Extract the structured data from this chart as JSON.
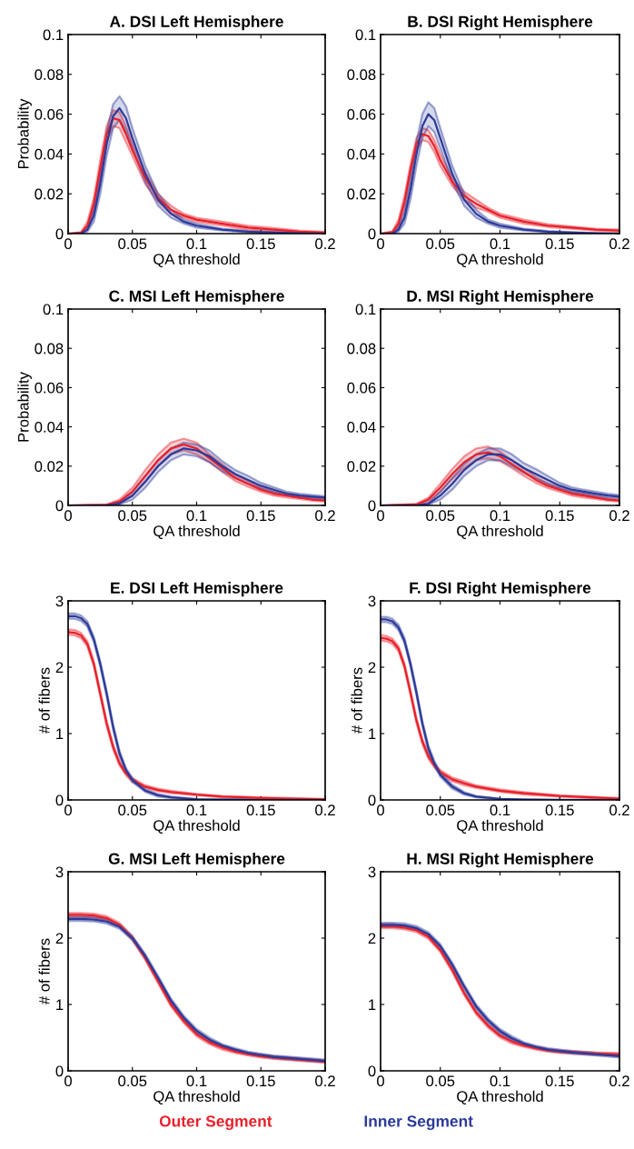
{
  "chart_data": [
    {
      "type": "line",
      "title": "A. DSI Left Hemisphere",
      "xlabel": "QA threshold",
      "ylabel": "Probability",
      "xlim": [
        0,
        0.2
      ],
      "ylim": [
        0,
        0.1
      ],
      "xticks": [
        0,
        0.05,
        0.1,
        0.15,
        0.2
      ],
      "yticks": [
        0,
        0.02,
        0.04,
        0.06,
        0.08,
        0.1
      ],
      "grid": false,
      "legend": false,
      "x": [
        0,
        0.01,
        0.015,
        0.02,
        0.025,
        0.03,
        0.035,
        0.04,
        0.045,
        0.05,
        0.06,
        0.07,
        0.08,
        0.09,
        0.1,
        0.12,
        0.14,
        0.16,
        0.18,
        0.2
      ],
      "series": [
        {
          "color": "#e8202a",
          "values": [
            0,
            0.0005,
            0.004,
            0.015,
            0.033,
            0.05,
            0.058,
            0.057,
            0.05,
            0.042,
            0.028,
            0.018,
            0.012,
            0.009,
            0.007,
            0.005,
            0.003,
            0.002,
            0.001,
            0.0005
          ],
          "lower": [
            0,
            0.0002,
            0.002,
            0.012,
            0.029,
            0.046,
            0.054,
            0.053,
            0.046,
            0.039,
            0.025,
            0.016,
            0.01,
            0.008,
            0.006,
            0.004,
            0.002,
            0.0012,
            0.0004,
            0.0001
          ],
          "upper": [
            0,
            0.0008,
            0.006,
            0.018,
            0.037,
            0.054,
            0.062,
            0.061,
            0.054,
            0.045,
            0.031,
            0.02,
            0.014,
            0.01,
            0.008,
            0.006,
            0.004,
            0.0028,
            0.0016,
            0.0009
          ]
        },
        {
          "color": "#2b3a9a",
          "values": [
            0,
            0,
            0.002,
            0.009,
            0.025,
            0.045,
            0.059,
            0.063,
            0.058,
            0.048,
            0.03,
            0.017,
            0.01,
            0.006,
            0.004,
            0.002,
            0.001,
            0.0005,
            0.0002,
            0
          ],
          "lower": [
            0,
            0,
            0.001,
            0.006,
            0.02,
            0.039,
            0.053,
            0.057,
            0.052,
            0.043,
            0.026,
            0.014,
            0.008,
            0.005,
            0.003,
            0.0015,
            0.0007,
            0.0003,
            0.0001,
            0
          ],
          "upper": [
            0,
            0,
            0.003,
            0.012,
            0.03,
            0.051,
            0.065,
            0.069,
            0.064,
            0.053,
            0.034,
            0.02,
            0.012,
            0.007,
            0.005,
            0.0025,
            0.0013,
            0.0007,
            0.0003,
            0.0001
          ]
        }
      ]
    },
    {
      "type": "line",
      "title": "B. DSI Right Hemisphere",
      "xlabel": "QA threshold",
      "xlim": [
        0,
        0.2
      ],
      "ylim": [
        0,
        0.1
      ],
      "xticks": [
        0,
        0.05,
        0.1,
        0.15,
        0.2
      ],
      "yticks": [
        0,
        0.02,
        0.04,
        0.06,
        0.08,
        0.1
      ],
      "grid": false,
      "legend": false,
      "x": [
        0,
        0.01,
        0.015,
        0.02,
        0.025,
        0.03,
        0.035,
        0.04,
        0.045,
        0.05,
        0.06,
        0.07,
        0.08,
        0.09,
        0.1,
        0.12,
        0.14,
        0.16,
        0.18,
        0.2
      ],
      "series": [
        {
          "color": "#e8202a",
          "values": [
            0,
            0.0008,
            0.005,
            0.016,
            0.032,
            0.045,
            0.05,
            0.049,
            0.044,
            0.037,
            0.026,
            0.019,
            0.015,
            0.012,
            0.009,
            0.006,
            0.004,
            0.003,
            0.002,
            0.0015
          ],
          "lower": [
            0,
            0.0004,
            0.003,
            0.013,
            0.029,
            0.042,
            0.047,
            0.046,
            0.041,
            0.034,
            0.024,
            0.017,
            0.013,
            0.011,
            0.008,
            0.005,
            0.0033,
            0.0024,
            0.0015,
            0.001
          ],
          "upper": [
            0,
            0.0012,
            0.007,
            0.019,
            0.035,
            0.048,
            0.053,
            0.052,
            0.047,
            0.04,
            0.028,
            0.021,
            0.017,
            0.013,
            0.01,
            0.007,
            0.0047,
            0.0036,
            0.0025,
            0.002
          ]
        },
        {
          "color": "#2b3a9a",
          "values": [
            0,
            0,
            0.002,
            0.008,
            0.022,
            0.04,
            0.054,
            0.06,
            0.057,
            0.048,
            0.03,
            0.017,
            0.01,
            0.006,
            0.004,
            0.002,
            0.001,
            0.0005,
            0.0002,
            0
          ],
          "lower": [
            0,
            0,
            0.001,
            0.005,
            0.017,
            0.034,
            0.048,
            0.054,
            0.051,
            0.043,
            0.026,
            0.014,
            0.008,
            0.005,
            0.003,
            0.0015,
            0.0007,
            0.0003,
            0.0001,
            0
          ],
          "upper": [
            0,
            0,
            0.003,
            0.011,
            0.027,
            0.046,
            0.06,
            0.066,
            0.063,
            0.053,
            0.034,
            0.02,
            0.012,
            0.007,
            0.005,
            0.0025,
            0.0013,
            0.0007,
            0.0003,
            0.0001
          ]
        }
      ]
    },
    {
      "type": "line",
      "title": "C. MSI Left Hemisphere",
      "xlabel": "QA threshold",
      "ylabel": "Probability",
      "xlim": [
        0,
        0.2
      ],
      "ylim": [
        0,
        0.1
      ],
      "xticks": [
        0,
        0.05,
        0.1,
        0.15,
        0.2
      ],
      "yticks": [
        0,
        0.02,
        0.04,
        0.06,
        0.08,
        0.1
      ],
      "grid": false,
      "legend": false,
      "x": [
        0,
        0.03,
        0.04,
        0.05,
        0.06,
        0.07,
        0.08,
        0.09,
        0.1,
        0.11,
        0.12,
        0.13,
        0.14,
        0.15,
        0.16,
        0.17,
        0.18,
        0.19,
        0.2
      ],
      "series": [
        {
          "color": "#e8202a",
          "values": [
            0,
            0.0003,
            0.002,
            0.007,
            0.015,
            0.023,
            0.029,
            0.031,
            0.029,
            0.024,
            0.019,
            0.014,
            0.011,
            0.008,
            0.006,
            0.005,
            0.004,
            0.003,
            0.0025
          ],
          "lower": [
            0,
            0.0001,
            0.001,
            0.005,
            0.012,
            0.02,
            0.026,
            0.028,
            0.026,
            0.022,
            0.017,
            0.0125,
            0.0095,
            0.007,
            0.005,
            0.004,
            0.0033,
            0.0024,
            0.002
          ],
          "upper": [
            0,
            0.0005,
            0.003,
            0.009,
            0.018,
            0.026,
            0.032,
            0.034,
            0.032,
            0.026,
            0.021,
            0.0155,
            0.0125,
            0.009,
            0.007,
            0.006,
            0.0047,
            0.0036,
            0.003
          ]
        },
        {
          "color": "#2b3a9a",
          "values": [
            0,
            0,
            0.001,
            0.005,
            0.012,
            0.02,
            0.026,
            0.029,
            0.028,
            0.025,
            0.02,
            0.016,
            0.013,
            0.01,
            0.008,
            0.006,
            0.005,
            0.0045,
            0.004
          ],
          "lower": [
            0,
            0,
            0.0005,
            0.003,
            0.009,
            0.017,
            0.023,
            0.026,
            0.025,
            0.022,
            0.0175,
            0.014,
            0.011,
            0.0085,
            0.0068,
            0.005,
            0.004,
            0.0037,
            0.0033
          ],
          "upper": [
            0,
            0.0002,
            0.0015,
            0.007,
            0.015,
            0.023,
            0.029,
            0.032,
            0.031,
            0.028,
            0.0225,
            0.018,
            0.015,
            0.0115,
            0.0092,
            0.007,
            0.006,
            0.0053,
            0.0047
          ]
        }
      ]
    },
    {
      "type": "line",
      "title": "D. MSI Right Hemisphere",
      "xlabel": "QA threshold",
      "xlim": [
        0,
        0.2
      ],
      "ylim": [
        0,
        0.1
      ],
      "xticks": [
        0,
        0.05,
        0.1,
        0.15,
        0.2
      ],
      "yticks": [
        0,
        0.02,
        0.04,
        0.06,
        0.08,
        0.1
      ],
      "grid": false,
      "legend": false,
      "x": [
        0,
        0.03,
        0.04,
        0.05,
        0.06,
        0.07,
        0.08,
        0.09,
        0.1,
        0.11,
        0.12,
        0.13,
        0.14,
        0.15,
        0.16,
        0.17,
        0.18,
        0.19,
        0.2
      ],
      "series": [
        {
          "color": "#e8202a",
          "values": [
            0,
            0.0005,
            0.003,
            0.009,
            0.016,
            0.022,
            0.026,
            0.027,
            0.025,
            0.021,
            0.017,
            0.013,
            0.01,
            0.008,
            0.006,
            0.005,
            0.004,
            0.003,
            0.0025
          ],
          "lower": [
            0,
            0.0002,
            0.002,
            0.007,
            0.0135,
            0.019,
            0.023,
            0.024,
            0.0225,
            0.019,
            0.015,
            0.0115,
            0.0088,
            0.007,
            0.005,
            0.004,
            0.0033,
            0.0024,
            0.002
          ],
          "upper": [
            0,
            0.0008,
            0.004,
            0.011,
            0.0185,
            0.025,
            0.029,
            0.03,
            0.0275,
            0.023,
            0.019,
            0.0145,
            0.0112,
            0.009,
            0.007,
            0.006,
            0.0047,
            0.0036,
            0.003
          ]
        },
        {
          "color": "#2b3a9a",
          "values": [
            0,
            0,
            0.0008,
            0.005,
            0.011,
            0.018,
            0.023,
            0.026,
            0.026,
            0.023,
            0.019,
            0.016,
            0.013,
            0.01,
            0.008,
            0.007,
            0.006,
            0.005,
            0.0045
          ],
          "lower": [
            0,
            0,
            0.0003,
            0.003,
            0.008,
            0.015,
            0.02,
            0.023,
            0.023,
            0.02,
            0.0165,
            0.0135,
            0.011,
            0.0085,
            0.0068,
            0.006,
            0.005,
            0.004,
            0.0037
          ],
          "upper": [
            0,
            0.0002,
            0.0013,
            0.007,
            0.014,
            0.021,
            0.026,
            0.029,
            0.029,
            0.026,
            0.0215,
            0.0185,
            0.015,
            0.0115,
            0.0092,
            0.008,
            0.007,
            0.006,
            0.0053
          ]
        }
      ]
    },
    {
      "type": "line",
      "title": "E. DSI Left Hemisphere",
      "xlabel": "QA threshold",
      "ylabel": "# of fibers",
      "xlim": [
        0,
        0.2
      ],
      "ylim": [
        0,
        3
      ],
      "xticks": [
        0,
        0.05,
        0.1,
        0.15,
        0.2
      ],
      "yticks": [
        0,
        1,
        2,
        3
      ],
      "grid": false,
      "legend": false,
      "x": [
        0,
        0.005,
        0.01,
        0.015,
        0.02,
        0.025,
        0.03,
        0.035,
        0.04,
        0.045,
        0.05,
        0.06,
        0.07,
        0.08,
        0.1,
        0.12,
        0.15,
        0.2
      ],
      "series": [
        {
          "color": "#e8202a",
          "values": [
            2.53,
            2.52,
            2.48,
            2.35,
            2.05,
            1.6,
            1.15,
            0.8,
            0.55,
            0.4,
            0.3,
            0.2,
            0.15,
            0.12,
            0.08,
            0.05,
            0.03,
            0.01
          ],
          "lower": [
            2.49,
            2.48,
            2.44,
            2.31,
            2.01,
            1.56,
            1.11,
            0.76,
            0.52,
            0.37,
            0.27,
            0.18,
            0.13,
            0.1,
            0.07,
            0.04,
            0.02,
            0.005
          ],
          "upper": [
            2.57,
            2.56,
            2.52,
            2.39,
            2.09,
            1.64,
            1.19,
            0.84,
            0.58,
            0.43,
            0.33,
            0.22,
            0.17,
            0.14,
            0.09,
            0.06,
            0.04,
            0.015
          ]
        },
        {
          "color": "#2b3a9a",
          "values": [
            2.77,
            2.77,
            2.74,
            2.65,
            2.42,
            2.05,
            1.6,
            1.1,
            0.7,
            0.45,
            0.3,
            0.14,
            0.07,
            0.04,
            0.01,
            0.005,
            0,
            0
          ],
          "lower": [
            2.73,
            2.73,
            2.7,
            2.61,
            2.38,
            2.01,
            1.56,
            1.06,
            0.66,
            0.42,
            0.27,
            0.12,
            0.05,
            0.03,
            0.005,
            0,
            0,
            0
          ],
          "upper": [
            2.81,
            2.81,
            2.78,
            2.69,
            2.46,
            2.09,
            1.64,
            1.14,
            0.74,
            0.48,
            0.33,
            0.16,
            0.09,
            0.05,
            0.015,
            0.01,
            0.005,
            0.002
          ]
        }
      ]
    },
    {
      "type": "line",
      "title": "F. DSI Right Hemisphere",
      "xlabel": "QA threshold",
      "ylabel": "# of fibers",
      "xlim": [
        0,
        0.2
      ],
      "ylim": [
        0,
        3
      ],
      "xticks": [
        0,
        0.05,
        0.1,
        0.15,
        0.2
      ],
      "yticks": [
        0,
        1,
        2,
        3
      ],
      "grid": false,
      "legend": false,
      "x": [
        0,
        0.005,
        0.01,
        0.015,
        0.02,
        0.025,
        0.03,
        0.035,
        0.04,
        0.045,
        0.05,
        0.06,
        0.07,
        0.08,
        0.1,
        0.12,
        0.15,
        0.2
      ],
      "series": [
        {
          "color": "#e8202a",
          "values": [
            2.44,
            2.43,
            2.39,
            2.28,
            2.02,
            1.62,
            1.2,
            0.88,
            0.66,
            0.52,
            0.42,
            0.31,
            0.25,
            0.2,
            0.14,
            0.1,
            0.06,
            0.02
          ],
          "lower": [
            2.4,
            2.39,
            2.35,
            2.24,
            1.98,
            1.58,
            1.16,
            0.84,
            0.62,
            0.49,
            0.39,
            0.28,
            0.22,
            0.18,
            0.12,
            0.08,
            0.05,
            0.01
          ],
          "upper": [
            2.48,
            2.47,
            2.43,
            2.32,
            2.06,
            1.66,
            1.24,
            0.92,
            0.7,
            0.55,
            0.45,
            0.34,
            0.28,
            0.22,
            0.16,
            0.12,
            0.07,
            0.03
          ]
        },
        {
          "color": "#2b3a9a",
          "values": [
            2.72,
            2.72,
            2.69,
            2.6,
            2.4,
            2.05,
            1.62,
            1.15,
            0.78,
            0.55,
            0.38,
            0.2,
            0.1,
            0.05,
            0.015,
            0.005,
            0,
            0
          ],
          "lower": [
            2.68,
            2.68,
            2.65,
            2.56,
            2.36,
            2.01,
            1.58,
            1.11,
            0.74,
            0.51,
            0.35,
            0.17,
            0.08,
            0.04,
            0.01,
            0,
            0,
            0
          ],
          "upper": [
            2.76,
            2.76,
            2.73,
            2.64,
            2.44,
            2.09,
            1.66,
            1.19,
            0.82,
            0.59,
            0.41,
            0.23,
            0.12,
            0.06,
            0.02,
            0.01,
            0.005,
            0.002
          ]
        }
      ]
    },
    {
      "type": "line",
      "title": "G. MSI Left Hemisphere",
      "xlabel": "QA threshold",
      "ylabel": "# of fibers",
      "xlim": [
        0,
        0.2
      ],
      "ylim": [
        0,
        3
      ],
      "xticks": [
        0,
        0.05,
        0.1,
        0.15,
        0.2
      ],
      "yticks": [
        0,
        1,
        2,
        3
      ],
      "grid": false,
      "legend": false,
      "x": [
        0,
        0.01,
        0.02,
        0.03,
        0.04,
        0.05,
        0.06,
        0.07,
        0.08,
        0.09,
        0.1,
        0.11,
        0.12,
        0.13,
        0.14,
        0.15,
        0.16,
        0.18,
        0.2
      ],
      "series": [
        {
          "color": "#e8202a",
          "values": [
            2.35,
            2.35,
            2.34,
            2.3,
            2.2,
            2.0,
            1.7,
            1.35,
            1.0,
            0.75,
            0.55,
            0.43,
            0.35,
            0.29,
            0.25,
            0.22,
            0.2,
            0.17,
            0.14
          ],
          "lower": [
            2.32,
            2.32,
            2.31,
            2.27,
            2.17,
            1.97,
            1.67,
            1.32,
            0.97,
            0.72,
            0.52,
            0.4,
            0.32,
            0.27,
            0.23,
            0.2,
            0.18,
            0.15,
            0.12
          ],
          "upper": [
            2.38,
            2.38,
            2.37,
            2.33,
            2.23,
            2.03,
            1.73,
            1.38,
            1.03,
            0.78,
            0.58,
            0.46,
            0.38,
            0.31,
            0.27,
            0.24,
            0.22,
            0.19,
            0.16
          ]
        },
        {
          "color": "#2b3a9a",
          "values": [
            2.29,
            2.29,
            2.28,
            2.25,
            2.17,
            2.0,
            1.73,
            1.4,
            1.06,
            0.8,
            0.6,
            0.47,
            0.38,
            0.32,
            0.27,
            0.24,
            0.21,
            0.18,
            0.15
          ],
          "lower": [
            2.26,
            2.26,
            2.25,
            2.22,
            2.14,
            1.97,
            1.7,
            1.37,
            1.03,
            0.77,
            0.57,
            0.44,
            0.36,
            0.3,
            0.25,
            0.22,
            0.19,
            0.16,
            0.13
          ],
          "upper": [
            2.32,
            2.32,
            2.31,
            2.28,
            2.2,
            2.03,
            1.76,
            1.43,
            1.09,
            0.83,
            0.63,
            0.5,
            0.4,
            0.34,
            0.29,
            0.26,
            0.23,
            0.2,
            0.17
          ]
        }
      ]
    },
    {
      "type": "line",
      "title": "H. MSI Right Hemisphere",
      "xlabel": "QA threshold",
      "xlim": [
        0,
        0.2
      ],
      "ylim": [
        0,
        3
      ],
      "xticks": [
        0,
        0.05,
        0.1,
        0.15,
        0.2
      ],
      "yticks": [
        0,
        1,
        2,
        3
      ],
      "grid": false,
      "legend": "bottom",
      "x": [
        0,
        0.01,
        0.02,
        0.03,
        0.04,
        0.05,
        0.06,
        0.07,
        0.08,
        0.09,
        0.1,
        0.11,
        0.12,
        0.13,
        0.14,
        0.15,
        0.16,
        0.18,
        0.2
      ],
      "series": [
        {
          "name": "Outer Segment",
          "color": "#e8202a",
          "values": [
            2.18,
            2.18,
            2.16,
            2.12,
            2.02,
            1.82,
            1.52,
            1.17,
            0.88,
            0.68,
            0.53,
            0.44,
            0.38,
            0.34,
            0.31,
            0.29,
            0.28,
            0.26,
            0.25
          ],
          "lower": [
            2.15,
            2.15,
            2.13,
            2.09,
            1.99,
            1.79,
            1.49,
            1.14,
            0.85,
            0.65,
            0.5,
            0.41,
            0.36,
            0.32,
            0.29,
            0.27,
            0.26,
            0.24,
            0.23
          ],
          "upper": [
            2.21,
            2.21,
            2.19,
            2.15,
            2.05,
            1.85,
            1.55,
            1.2,
            0.91,
            0.71,
            0.56,
            0.47,
            0.4,
            0.36,
            0.33,
            0.31,
            0.3,
            0.28,
            0.27
          ]
        },
        {
          "name": "Inner Segment",
          "color": "#2b3a9a",
          "values": [
            2.2,
            2.2,
            2.19,
            2.15,
            2.06,
            1.88,
            1.6,
            1.27,
            0.97,
            0.76,
            0.6,
            0.49,
            0.41,
            0.36,
            0.32,
            0.3,
            0.28,
            0.25,
            0.22
          ],
          "lower": [
            2.17,
            2.17,
            2.16,
            2.12,
            2.03,
            1.85,
            1.57,
            1.24,
            0.94,
            0.73,
            0.57,
            0.46,
            0.39,
            0.34,
            0.3,
            0.28,
            0.26,
            0.23,
            0.2
          ],
          "upper": [
            2.23,
            2.23,
            2.22,
            2.18,
            2.09,
            1.91,
            1.63,
            1.3,
            1.0,
            0.79,
            0.63,
            0.52,
            0.43,
            0.38,
            0.34,
            0.32,
            0.3,
            0.27,
            0.24
          ]
        }
      ]
    }
  ]
}
